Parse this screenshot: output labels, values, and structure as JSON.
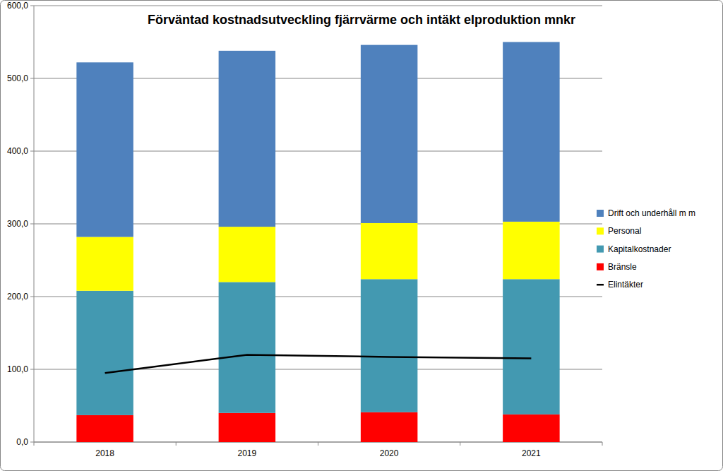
{
  "chart_data": {
    "type": "bar",
    "title": "Förväntad kostnadsutveckling fjärrvärme och intäkt elproduktion mnkr",
    "categories": [
      "2018",
      "2019",
      "2020",
      "2021"
    ],
    "stacked": true,
    "grid": true,
    "legend": "right",
    "ylim": [
      0,
      600
    ],
    "yticks": [
      {
        "value": 0,
        "label": "0,0"
      },
      {
        "value": 100,
        "label": "100,0"
      },
      {
        "value": 200,
        "label": "200,0"
      },
      {
        "value": 300,
        "label": "300,0"
      },
      {
        "value": 400,
        "label": "400,0"
      },
      {
        "value": 500,
        "label": "500,0"
      },
      {
        "value": 600,
        "label": "600,0"
      }
    ],
    "series": [
      {
        "name": "Bränsle",
        "color": "#ff0000",
        "values": [
          37,
          40,
          41,
          38
        ]
      },
      {
        "name": "Kapitalkostnader",
        "color": "#4399b1",
        "values": [
          171,
          180,
          183,
          186
        ]
      },
      {
        "name": "Personal",
        "color": "#ffff00",
        "values": [
          74,
          76,
          77,
          79
        ]
      },
      {
        "name": "Drift och underhåll m m",
        "color": "#4f81bd",
        "values": [
          240,
          242,
          245,
          247
        ]
      },
      {
        "name": "Elintäkter",
        "color": "#000000",
        "type": "line",
        "values": [
          95,
          120,
          117,
          115
        ]
      }
    ]
  }
}
